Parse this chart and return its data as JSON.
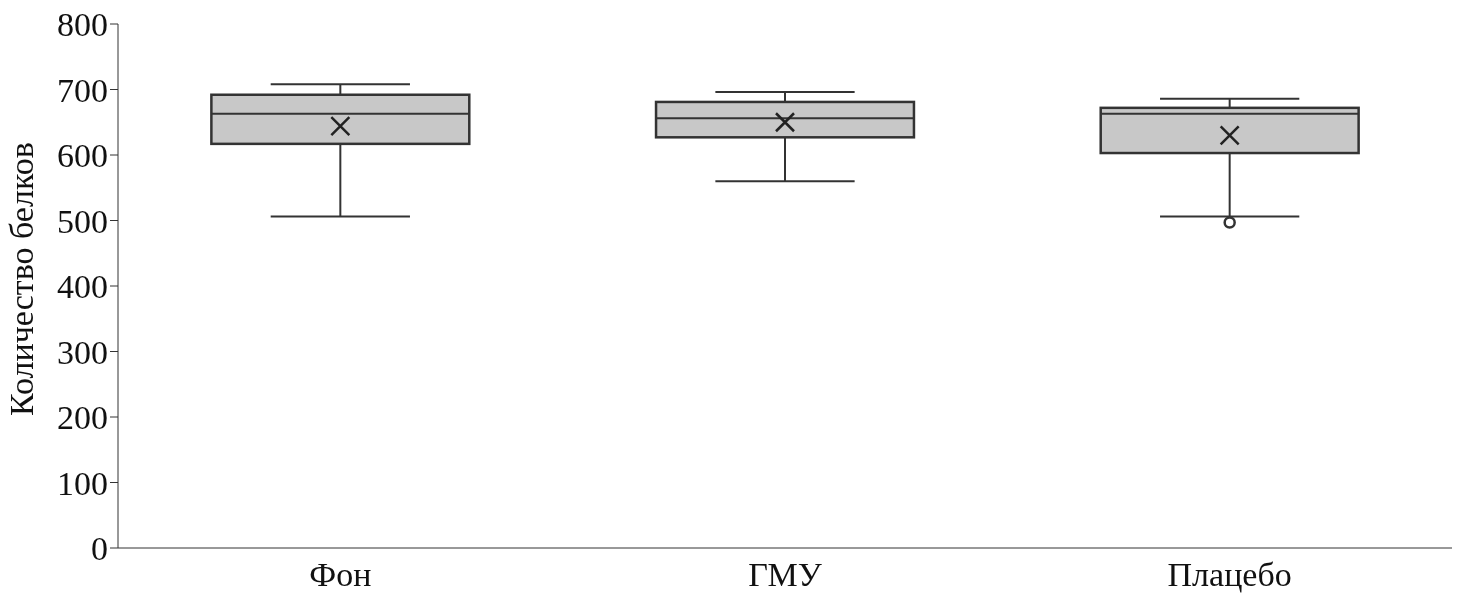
{
  "chart_data": {
    "type": "box",
    "ylabel": "Количество белков",
    "categories": [
      "Фон",
      "ГМУ",
      "Плацебо"
    ],
    "boxes": [
      {
        "low": 506,
        "q1": 617,
        "median": 663,
        "q3": 692,
        "high": 708,
        "mean": 644
      },
      {
        "low": 560,
        "q1": 627,
        "median": 656,
        "q3": 681,
        "high": 696,
        "mean": 650
      },
      {
        "low": 506,
        "q1": 603,
        "median": 663,
        "q3": 672,
        "high": 686,
        "mean": 630,
        "outliers": [
          497
        ]
      }
    ],
    "color": "#c8c8c8",
    "ylim": [
      0,
      800
    ],
    "yticks": [
      0,
      100,
      200,
      300,
      400,
      500,
      600,
      700,
      800
    ],
    "grid": false
  }
}
